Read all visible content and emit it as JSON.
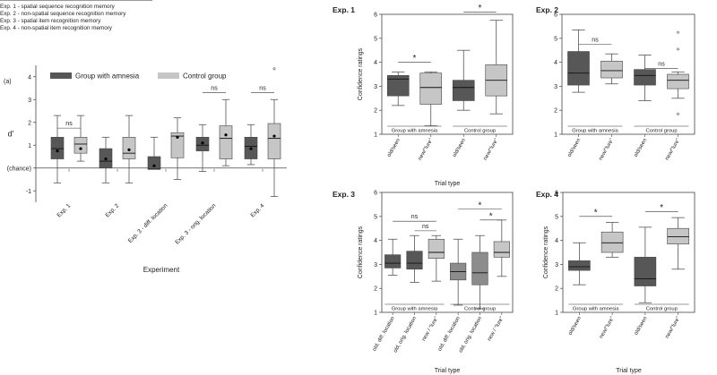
{
  "legend_text": [
    "Exp. 1 - spatial sequence recognition memory",
    "Exp. 2 - non-spatial sequence recognition memory",
    "Exp. 3 - spatial item recognition memory",
    "Exp. 4 - non-spatial item recognition memory"
  ],
  "colors": {
    "amnesia": "#575757",
    "control": "#c6c6c6",
    "amnesia_light": "#8c8c8c",
    "axis": "#444444"
  },
  "chart_data": [
    {
      "id": "a",
      "type": "box",
      "panel_label": "(a)",
      "title": "",
      "xlabel": "Experiment",
      "ylabel": "d'",
      "ylim": [
        -1.5,
        4.5
      ],
      "yticks": [
        -1,
        0,
        1,
        2,
        3,
        4
      ],
      "ytick_labels": [
        "-1",
        "(chance)",
        "1",
        "2",
        "3",
        "4"
      ],
      "categories": [
        "Exp. 1",
        "Exp. 2",
        "Exp. 3 - diff. location",
        "Exp. 3 - orig. location",
        "Exp. 4"
      ],
      "legend": [
        "Group with amnesia",
        "Control group"
      ],
      "series": [
        {
          "name": "Group with amnesia",
          "boxes": [
            {
              "min": -0.65,
              "q1": 0.4,
              "median": 0.85,
              "q3": 1.35,
              "max": 2.3,
              "mean": 0.75
            },
            {
              "min": -0.65,
              "q1": 0.0,
              "median": 0.3,
              "q3": 0.85,
              "max": 1.35,
              "mean": 0.4
            },
            {
              "min": -0.05,
              "q1": -0.05,
              "median": -0.05,
              "q3": 0.5,
              "max": 1.35,
              "mean": 0.1
            },
            {
              "min": -0.15,
              "q1": 0.75,
              "median": 1.0,
              "q3": 1.35,
              "max": 1.9,
              "mean": 1.1
            },
            {
              "min": 0.15,
              "q1": 0.4,
              "median": 0.95,
              "q3": 1.35,
              "max": 1.9,
              "mean": 0.85
            }
          ]
        },
        {
          "name": "Control group",
          "boxes": [
            {
              "min": 0.3,
              "q1": 0.65,
              "median": 1.05,
              "q3": 1.35,
              "max": 2.3,
              "mean": 0.85
            },
            {
              "min": -0.65,
              "q1": 0.4,
              "median": 0.65,
              "q3": 1.35,
              "max": 2.3,
              "mean": 0.8
            },
            {
              "min": -0.5,
              "q1": 0.45,
              "median": 1.4,
              "q3": 1.55,
              "max": 2.2,
              "mean": 1.35
            },
            {
              "min": 0.1,
              "q1": 0.4,
              "median": 1.3,
              "q3": 1.85,
              "max": 3.0,
              "mean": 1.45
            },
            {
              "min": -1.25,
              "q1": 0.4,
              "median": 1.3,
              "q3": 1.95,
              "max": 3.0,
              "mean": 1.4,
              "outliers": [
                4.35
              ]
            }
          ]
        }
      ],
      "annotations": [
        {
          "category": 0,
          "text": "ns",
          "y": 1.75
        },
        {
          "category": 3,
          "text": "ns",
          "y": 3.3
        },
        {
          "category": 4,
          "text": "ns",
          "y": 3.3
        }
      ]
    },
    {
      "id": "exp1",
      "type": "box",
      "title": "Exp. 1",
      "xlabel": "Trial type",
      "ylabel": "Confidence ratings",
      "ylim": [
        1,
        6
      ],
      "yticks": [
        1,
        2,
        3,
        4,
        5,
        6
      ],
      "categories": [
        "old/seen",
        "new/\"lure\"",
        "old/seen",
        "new/\"lure\""
      ],
      "group_labels": [
        "Group with amnesia",
        "Control group"
      ],
      "boxes": [
        {
          "min": 2.2,
          "q1": 2.6,
          "median": 3.3,
          "q3": 3.45,
          "max": 3.6
        },
        {
          "min": 1.35,
          "q1": 2.25,
          "median": 2.95,
          "q3": 3.55,
          "max": 3.6
        },
        {
          "min": 2.0,
          "q1": 2.4,
          "median": 2.95,
          "q3": 3.25,
          "max": 4.5
        },
        {
          "min": 1.85,
          "q1": 2.6,
          "median": 3.25,
          "q3": 3.9,
          "max": 5.75
        }
      ],
      "annotations": [
        {
          "text": "*",
          "from": 0,
          "to": 1,
          "y": 4.0
        },
        {
          "text": "*",
          "from": 2,
          "to": 3,
          "y": 6.1
        }
      ]
    },
    {
      "id": "exp2",
      "type": "box",
      "title": "Exp. 2",
      "xlabel": "",
      "ylabel": "",
      "ylim": [
        1,
        6
      ],
      "yticks": [
        1,
        2,
        3,
        4,
        5,
        6
      ],
      "categories": [
        "old/seen",
        "new/\"lure\"",
        "old/seen",
        "new/\"lure\""
      ],
      "group_labels": [
        "Group with amnesia",
        "Control group"
      ],
      "boxes": [
        {
          "min": 2.75,
          "q1": 3.05,
          "median": 3.55,
          "q3": 4.45,
          "max": 5.35
        },
        {
          "min": 3.1,
          "q1": 3.35,
          "median": 3.65,
          "q3": 4.05,
          "max": 4.35
        },
        {
          "min": 2.4,
          "q1": 3.05,
          "median": 3.45,
          "q3": 3.7,
          "max": 4.3
        },
        {
          "min": 2.5,
          "q1": 2.9,
          "median": 3.25,
          "q3": 3.5,
          "max": 3.6,
          "outliers": [
            5.25,
            4.55,
            1.85
          ]
        }
      ],
      "annotations": [
        {
          "text": "ns",
          "from": 0,
          "to": 1,
          "y": 4.75
        },
        {
          "text": "ns",
          "from": 2,
          "to": 3,
          "y": 3.75
        }
      ]
    },
    {
      "id": "exp3",
      "type": "box",
      "title": "Exp. 3",
      "xlabel": "Trial type",
      "ylabel": "Confidence ratings",
      "ylim": [
        1,
        6
      ],
      "yticks": [
        1,
        2,
        3,
        4,
        5,
        6
      ],
      "categories": [
        "old, diff. location",
        "old, orig. location",
        "new / \"lure\"",
        "old, diff. location",
        "old, orig. location",
        "new / \"lure\""
      ],
      "group_labels": [
        "Group with amnesia",
        "Control group"
      ],
      "boxes": [
        {
          "min": 2.55,
          "q1": 2.85,
          "median": 3.05,
          "q3": 3.4,
          "max": 4.05
        },
        {
          "min": 2.25,
          "q1": 2.8,
          "median": 3.05,
          "q3": 3.55,
          "max": 4.2
        },
        {
          "min": 2.3,
          "q1": 3.25,
          "median": 3.5,
          "q3": 4.05,
          "max": 4.2
        },
        {
          "min": 1.3,
          "q1": 2.35,
          "median": 2.7,
          "q3": 3.05,
          "max": 4.05
        },
        {
          "min": 1.15,
          "q1": 2.15,
          "median": 2.65,
          "q3": 3.5,
          "max": 4.2
        },
        {
          "min": 2.5,
          "q1": 3.3,
          "median": 3.5,
          "q3": 3.95,
          "max": 4.85
        }
      ],
      "annotations": [
        {
          "text": "ns",
          "from": 0,
          "to": 2,
          "y": 4.8
        },
        {
          "text": "ns",
          "from": 1,
          "to": 2,
          "y": 4.4
        },
        {
          "text": "*",
          "from": 3,
          "to": 5,
          "y": 5.3
        },
        {
          "text": "*",
          "from": 4,
          "to": 5,
          "y": 4.85
        }
      ]
    },
    {
      "id": "exp4",
      "type": "box",
      "title": "Exp. 4",
      "xlabel": "Trial type",
      "ylabel": "Confidence ratings",
      "ylim": [
        1,
        6
      ],
      "yticks": [
        1,
        2,
        3,
        4,
        5,
        6
      ],
      "categories": [
        "old/seen",
        "new/\"lure\"",
        "old/seen",
        "new/\"lure\""
      ],
      "group_labels": [
        "Group with amnesia",
        "Control group"
      ],
      "boxes": [
        {
          "min": 2.15,
          "q1": 2.75,
          "median": 2.9,
          "q3": 3.15,
          "max": 3.9
        },
        {
          "min": 3.3,
          "q1": 3.5,
          "median": 3.9,
          "q3": 4.35,
          "max": 4.75
        },
        {
          "min": 1.4,
          "q1": 2.1,
          "median": 2.4,
          "q3": 3.3,
          "max": 4.55
        },
        {
          "min": 2.8,
          "q1": 3.85,
          "median": 4.15,
          "q3": 4.5,
          "max": 4.95
        }
      ],
      "annotations": [
        {
          "text": "*",
          "from": 0,
          "to": 1,
          "y": 5.0
        },
        {
          "text": "*",
          "from": 2,
          "to": 3,
          "y": 5.2
        }
      ]
    }
  ]
}
